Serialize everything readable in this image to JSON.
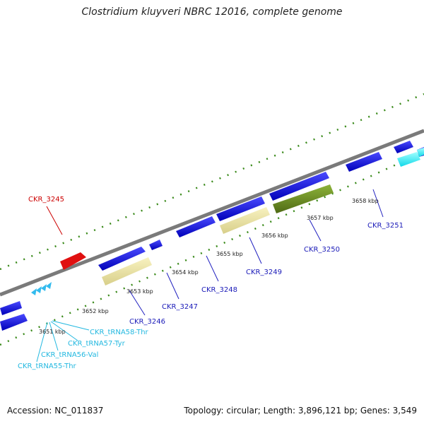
{
  "title": "Clostridium kluyveri NBRC 12016, complete genome",
  "footer": {
    "accession": "Accession: NC_011837",
    "stats": "Topology: circular; Length: 3,896,121 bp; Genes: 3,549"
  },
  "colors": {
    "backbone": "#808080",
    "tick": "#3a8a1a",
    "gene_forward": "#1c1cd6",
    "gene_reverse_pale": "#eee8aa",
    "gene_olive": "#6b8e23",
    "gene_red": "#e01010",
    "trna": "#33bbee",
    "label_blue": "#1a1ab8",
    "label_red": "#cc0000",
    "label_cyan": "#22b8e0"
  },
  "kbp_labels": [
    "3651 kbp",
    "3652 kbp",
    "3653 kbp",
    "3654 kbp",
    "3655 kbp",
    "3656 kbp",
    "3657 kbp",
    "3658 kbp"
  ],
  "gene_labels": [
    "CKR_3245",
    "CKR_3246",
    "CKR_3247",
    "CKR_3248",
    "CKR_3249",
    "CKR_3250",
    "CKR_3251"
  ],
  "trna_labels": [
    "CKR_tRNA58-Thr",
    "CKR_tRNA57-Tyr",
    "CKR_tRNA56-Val",
    "CKR_tRNA55-Thr"
  ]
}
